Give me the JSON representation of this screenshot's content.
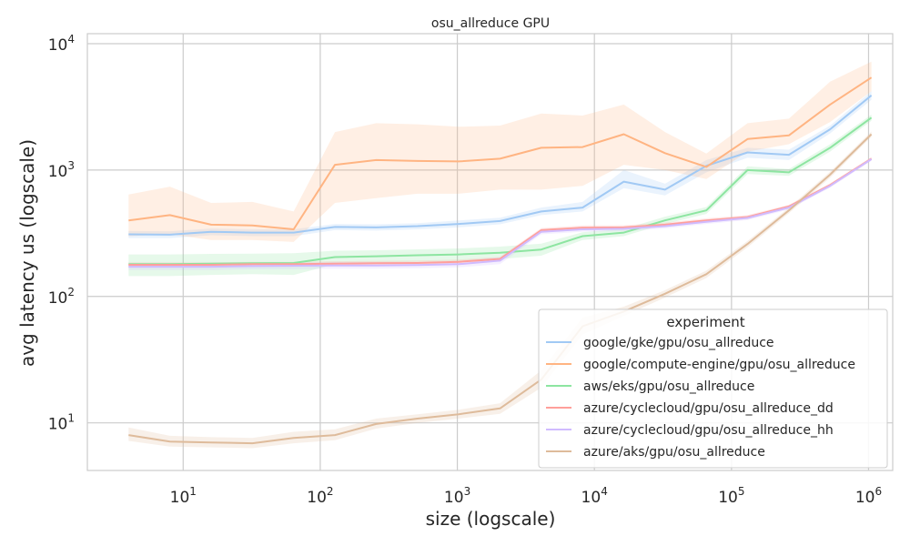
{
  "chart_data": {
    "type": "line",
    "title": "osu_allreduce GPU",
    "xlabel": "size (logscale)",
    "ylabel": "avg latency us (logscale)",
    "xscale": "log",
    "yscale": "log",
    "xlim": [
      2,
      1500000
    ],
    "ylim": [
      4.2,
      12000
    ],
    "xticks": [
      {
        "value": 10,
        "base": "10",
        "exp": "1"
      },
      {
        "value": 100,
        "base": "10",
        "exp": "2"
      },
      {
        "value": 1000,
        "base": "10",
        "exp": "3"
      },
      {
        "value": 10000,
        "base": "10",
        "exp": "4"
      },
      {
        "value": 100000,
        "base": "10",
        "exp": "5"
      },
      {
        "value": 1000000,
        "base": "10",
        "exp": "6"
      }
    ],
    "yticks": [
      {
        "value": 10,
        "base": "10",
        "exp": "1"
      },
      {
        "value": 100,
        "base": "10",
        "exp": "2"
      },
      {
        "value": 1000,
        "base": "10",
        "exp": "3"
      },
      {
        "value": 10000,
        "base": "10",
        "exp": "4"
      }
    ],
    "grid": true,
    "legend": {
      "title": "experiment",
      "position": "lower-right"
    },
    "x": [
      4,
      8,
      16,
      32,
      64,
      128,
      256,
      512,
      1024,
      2048,
      4096,
      8192,
      16384,
      32768,
      65536,
      131072,
      262144,
      524288,
      1048576
    ],
    "series": [
      {
        "name": "google/gke/gpu/osu_allreduce",
        "color": "#a1c9f4",
        "values": [
          310,
          308,
          325,
          320,
          320,
          355,
          352,
          360,
          375,
          395,
          470,
          505,
          810,
          700,
          1080,
          1380,
          1320,
          2100,
          3900
        ],
        "lower": [
          290,
          290,
          305,
          300,
          300,
          335,
          332,
          340,
          352,
          372,
          440,
          470,
          720,
          630,
          960,
          1250,
          1200,
          1950,
          3600
        ],
        "upper": [
          330,
          328,
          345,
          340,
          340,
          375,
          372,
          380,
          400,
          420,
          505,
          560,
          1000,
          780,
          1200,
          1500,
          1450,
          2250,
          4200
        ]
      },
      {
        "name": "google/compute-engine/gpu/osu_allreduce",
        "color": "#ffb482",
        "values": [
          400,
          440,
          370,
          365,
          340,
          1100,
          1200,
          1180,
          1170,
          1230,
          1500,
          1520,
          1920,
          1360,
          1060,
          1760,
          1880,
          3300,
          5400
        ],
        "lower": [
          300,
          310,
          280,
          280,
          270,
          550,
          600,
          650,
          650,
          700,
          700,
          750,
          1100,
          1000,
          850,
          1400,
          1600,
          2400,
          4200
        ],
        "upper": [
          640,
          740,
          550,
          560,
          470,
          2000,
          2350,
          2300,
          2200,
          2250,
          2800,
          2700,
          3300,
          2000,
          1350,
          2350,
          2550,
          5000,
          7200
        ]
      },
      {
        "name": "aws/eks/gpu/osu_allreduce",
        "color": "#8de5a1",
        "values": [
          180,
          180,
          182,
          183,
          184,
          205,
          208,
          212,
          215,
          222,
          235,
          300,
          320,
          400,
          480,
          1000,
          960,
          1500,
          2600
        ],
        "lower": [
          145,
          145,
          148,
          150,
          148,
          180,
          185,
          188,
          190,
          198,
          210,
          280,
          300,
          375,
          450,
          930,
          900,
          1400,
          2450
        ],
        "upper": [
          215,
          215,
          217,
          218,
          220,
          230,
          232,
          236,
          240,
          248,
          262,
          322,
          342,
          428,
          510,
          1070,
          1020,
          1600,
          2750
        ]
      },
      {
        "name": "azure/cyclecloud/gpu/osu_allreduce_dd",
        "color": "#ff9f9b",
        "values": [
          178,
          178,
          178,
          180,
          180,
          182,
          183,
          184,
          188,
          198,
          335,
          350,
          352,
          370,
          400,
          425,
          515,
          760,
          1230
        ],
        "lower": [
          170,
          170,
          170,
          172,
          172,
          174,
          175,
          176,
          180,
          190,
          322,
          336,
          338,
          356,
          385,
          410,
          498,
          735,
          1195
        ],
        "upper": [
          186,
          186,
          186,
          188,
          188,
          190,
          191,
          192,
          196,
          206,
          348,
          364,
          366,
          384,
          415,
          440,
          532,
          785,
          1265
        ]
      },
      {
        "name": "azure/cyclecloud/gpu/osu_allreduce_hh",
        "color": "#d0bbff",
        "values": [
          172,
          172,
          172,
          174,
          175,
          176,
          176,
          177,
          180,
          192,
          325,
          340,
          343,
          360,
          390,
          418,
          505,
          750,
          1220
        ],
        "lower": [
          162,
          162,
          162,
          164,
          165,
          166,
          166,
          167,
          170,
          180,
          310,
          325,
          328,
          345,
          375,
          402,
          488,
          725,
          1185
        ],
        "upper": [
          182,
          182,
          182,
          184,
          185,
          186,
          186,
          187,
          190,
          204,
          340,
          355,
          358,
          375,
          405,
          434,
          522,
          775,
          1255
        ]
      },
      {
        "name": "azure/aks/gpu/osu_allreduce",
        "color": "#debb9b",
        "values": [
          8.0,
          7.1,
          7.0,
          6.9,
          7.6,
          8.0,
          9.8,
          10.8,
          11.7,
          13.0,
          22,
          58,
          76,
          105,
          150,
          260,
          480,
          920,
          1920
        ],
        "lower": [
          7.2,
          6.5,
          6.4,
          6.3,
          6.9,
          7.3,
          9.0,
          10.0,
          10.8,
          11.8,
          19,
          50,
          70,
          98,
          140,
          245,
          455,
          870,
          1830
        ],
        "upper": [
          9.2,
          7.9,
          7.7,
          7.6,
          8.5,
          8.9,
          10.8,
          11.7,
          12.7,
          14.3,
          26,
          68,
          83,
          112,
          160,
          275,
          505,
          970,
          2020
        ]
      }
    ]
  }
}
